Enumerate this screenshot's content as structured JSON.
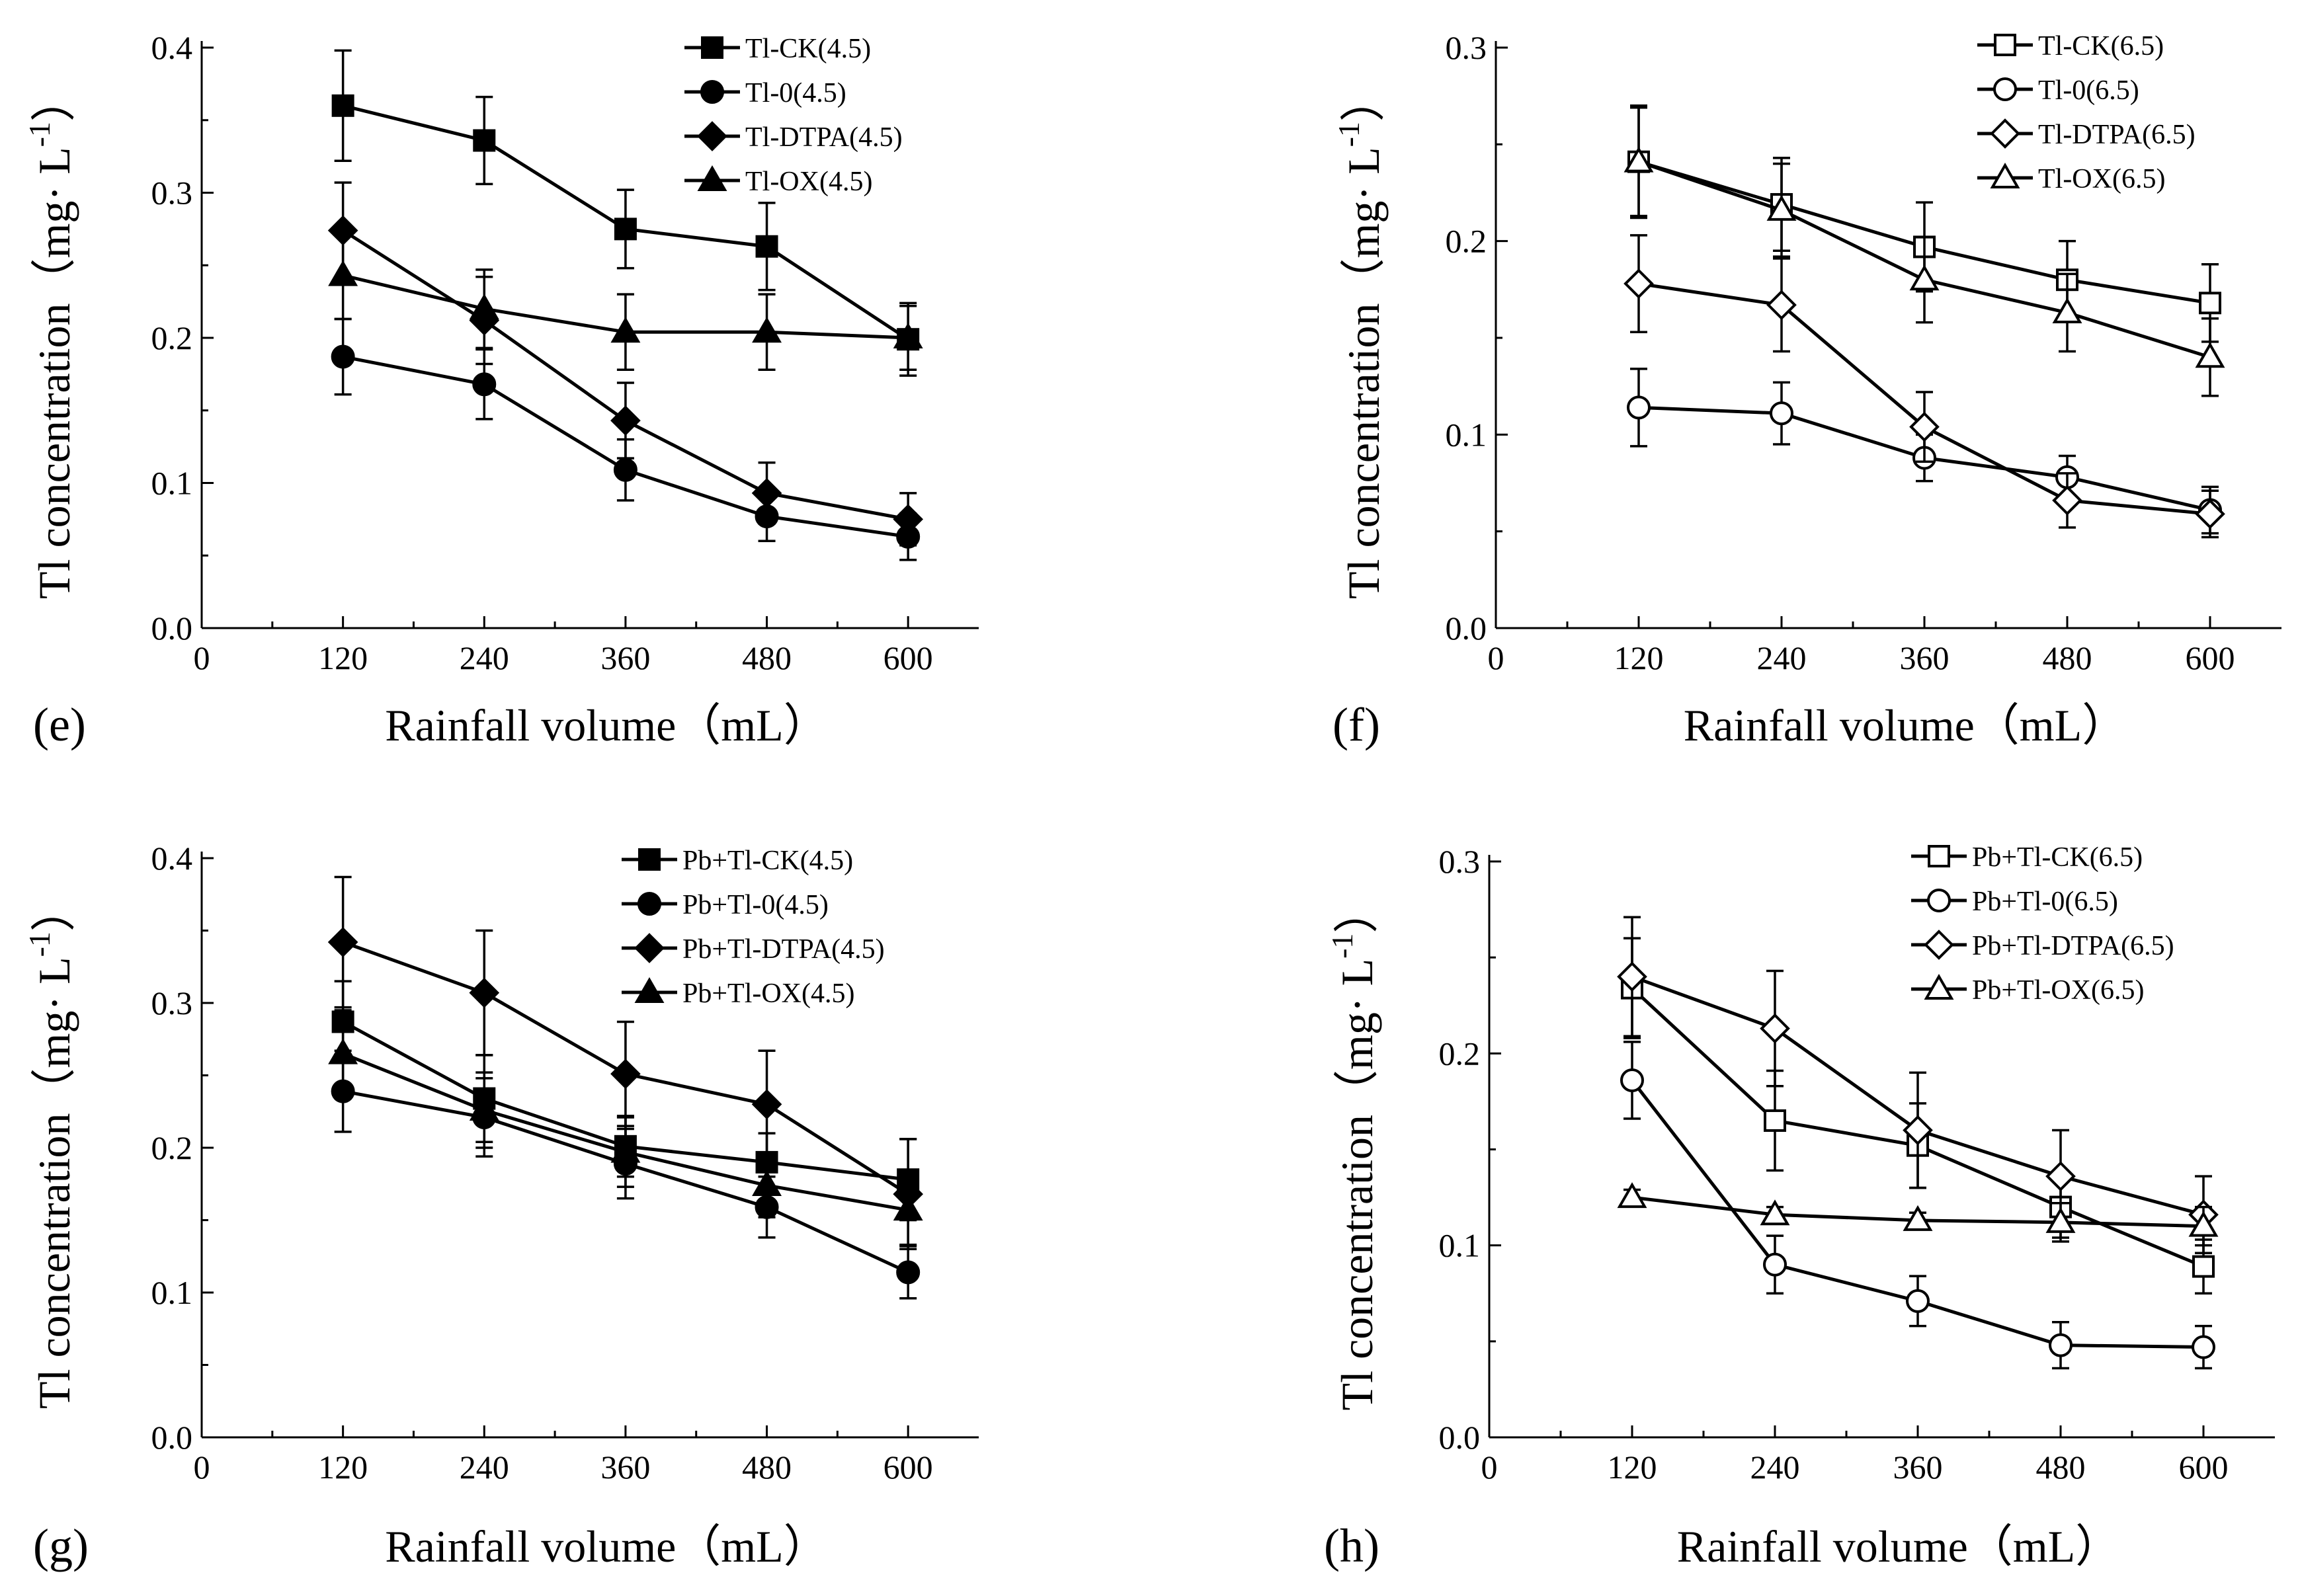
{
  "chart_data": [
    {
      "panel_label": "(e)",
      "type": "line",
      "xlabel": "Rainfall volume（mL）",
      "ylabel_main": "Tl concentration（mg· L",
      "ylabel_sup": "-1",
      "ylabel_close": "）",
      "xlim": [
        0,
        660
      ],
      "ylim": [
        0,
        0.4
      ],
      "xticks": [
        0,
        120,
        240,
        360,
        480,
        600
      ],
      "xtick_labels": [
        "0",
        "120",
        "240",
        "360",
        "480",
        "600"
      ],
      "yticks": [
        0,
        0.1,
        0.2,
        0.3,
        0.4
      ],
      "ytick_labels": [
        "0.0",
        "0.1",
        "0.2",
        "0.3",
        "0.4"
      ],
      "legend_position": "top-right",
      "x": [
        120,
        240,
        360,
        480,
        600
      ],
      "series": [
        {
          "name": "Tl-CK(4.5)",
          "marker": "square",
          "filled": true,
          "values": [
            0.36,
            0.336,
            0.275,
            0.263,
            0.199
          ],
          "errors": [
            0.038,
            0.03,
            0.027,
            0.03,
            0.025
          ]
        },
        {
          "name": "Tl-0(4.5)",
          "marker": "circle",
          "filled": true,
          "values": [
            0.187,
            0.168,
            0.109,
            0.077,
            0.063
          ],
          "errors": [
            0.026,
            0.024,
            0.021,
            0.017,
            0.016
          ]
        },
        {
          "name": "Tl-DTPA(4.5)",
          "marker": "diamond",
          "filled": true,
          "values": [
            0.274,
            0.212,
            0.143,
            0.093,
            0.075
          ],
          "errors": [
            0.033,
            0.03,
            0.026,
            0.021,
            0.018
          ]
        },
        {
          "name": "Tl-OX(4.5)",
          "marker": "triangle",
          "filled": true,
          "values": [
            0.243,
            0.22,
            0.204,
            0.204,
            0.2
          ],
          "errors": [
            0.03,
            0.027,
            0.026,
            0.026,
            0.022
          ]
        }
      ]
    },
    {
      "panel_label": "(f)",
      "type": "line",
      "xlabel": "Rainfall volume（mL）",
      "ylabel_main": "Tl concentration（mg· L",
      "ylabel_sup": "-1",
      "ylabel_close": "）",
      "xlim": [
        0,
        660
      ],
      "ylim": [
        0,
        0.3
      ],
      "xticks": [
        0,
        120,
        240,
        360,
        480,
        600
      ],
      "xtick_labels": [
        "0",
        "120",
        "240",
        "360",
        "480",
        "600"
      ],
      "yticks": [
        0,
        0.1,
        0.2,
        0.3
      ],
      "ytick_labels": [
        "0.0",
        "0.1",
        "0.2",
        "0.3"
      ],
      "legend_position": "top-right",
      "x": [
        120,
        240,
        360,
        480,
        600
      ],
      "series": [
        {
          "name": "Tl-CK(6.5)",
          "marker": "square",
          "filled": false,
          "values": [
            0.241,
            0.219,
            0.197,
            0.18,
            0.168
          ],
          "errors": [
            0.029,
            0.024,
            0.023,
            0.02,
            0.02
          ]
        },
        {
          "name": "Tl-0(6.5)",
          "marker": "circle",
          "filled": false,
          "values": [
            0.114,
            0.111,
            0.088,
            0.078,
            0.061
          ],
          "errors": [
            0.02,
            0.016,
            0.012,
            0.011,
            0.012
          ]
        },
        {
          "name": "Tl-DTPA(6.5)",
          "marker": "diamond",
          "filled": false,
          "values": [
            0.178,
            0.167,
            0.104,
            0.066,
            0.059
          ],
          "errors": [
            0.025,
            0.024,
            0.018,
            0.014,
            0.012
          ]
        },
        {
          "name": "Tl-OX(6.5)",
          "marker": "triangle",
          "filled": false,
          "values": [
            0.241,
            0.216,
            0.18,
            0.163,
            0.14
          ],
          "errors": [
            0.028,
            0.024,
            0.022,
            0.02,
            0.02
          ]
        }
      ]
    },
    {
      "panel_label": "(g)",
      "type": "line",
      "xlabel": "Rainfall volume（mL）",
      "ylabel_main": "Tl concentration（mg· L",
      "ylabel_sup": "-1",
      "ylabel_close": "）",
      "xlim": [
        0,
        660
      ],
      "ylim": [
        0,
        0.4
      ],
      "xticks": [
        0,
        120,
        240,
        360,
        480,
        600
      ],
      "xtick_labels": [
        "0",
        "120",
        "240",
        "360",
        "480",
        "600"
      ],
      "yticks": [
        0,
        0.1,
        0.2,
        0.3,
        0.4
      ],
      "ytick_labels": [
        "0.0",
        "0.1",
        "0.2",
        "0.3",
        "0.4"
      ],
      "legend_position": "top-right",
      "x": [
        120,
        240,
        360,
        480,
        600
      ],
      "series": [
        {
          "name": "Pb+Tl-CK(4.5)",
          "marker": "square",
          "filled": true,
          "values": [
            0.287,
            0.234,
            0.201,
            0.19,
            0.178
          ],
          "errors": [
            0.028,
            0.03,
            0.021,
            0.02,
            0.028
          ]
        },
        {
          "name": "Pb+Tl-0(4.5)",
          "marker": "circle",
          "filled": true,
          "values": [
            0.239,
            0.221,
            0.189,
            0.159,
            0.114
          ],
          "errors": [
            0.028,
            0.027,
            0.024,
            0.021,
            0.018
          ]
        },
        {
          "name": "Pb+Tl-DTPA(4.5)",
          "marker": "diamond",
          "filled": true,
          "values": [
            0.342,
            0.307,
            0.251,
            0.23,
            0.168
          ],
          "errors": [
            0.045,
            0.043,
            0.036,
            0.037,
            0.038
          ]
        },
        {
          "name": "Pb+Tl-OX(4.5)",
          "marker": "triangle",
          "filled": true,
          "values": [
            0.265,
            0.226,
            0.197,
            0.174,
            0.157
          ],
          "errors": [
            0.03,
            0.026,
            0.024,
            0.022,
            0.024
          ]
        }
      ]
    },
    {
      "panel_label": "(h)",
      "type": "line",
      "xlabel": "Rainfall volume（mL）",
      "ylabel_main": "Tl concentration（mg· L",
      "ylabel_sup": "-1",
      "ylabel_close": "）",
      "xlim": [
        0,
        660
      ],
      "ylim": [
        0,
        0.3
      ],
      "xticks": [
        0,
        120,
        240,
        360,
        480,
        600
      ],
      "xtick_labels": [
        "0",
        "120",
        "240",
        "360",
        "480",
        "600"
      ],
      "yticks": [
        0,
        0.1,
        0.2,
        0.3
      ],
      "ytick_labels": [
        "0.0",
        "0.1",
        "0.2",
        "0.3"
      ],
      "legend_position": "top-right",
      "x": [
        120,
        240,
        360,
        480,
        600
      ],
      "series": [
        {
          "name": "Pb+Tl-CK(6.5)",
          "marker": "square",
          "filled": false,
          "values": [
            0.234,
            0.165,
            0.152,
            0.12,
            0.089
          ],
          "errors": [
            0.026,
            0.026,
            0.022,
            0.016,
            0.014
          ]
        },
        {
          "name": "Pb+Tl-0(6.5)",
          "marker": "circle",
          "filled": false,
          "values": [
            0.186,
            0.09,
            0.071,
            0.048,
            0.047
          ],
          "errors": [
            0.02,
            0.015,
            0.013,
            0.012,
            0.011
          ]
        },
        {
          "name": "Pb+Tl-DTPA(6.5)",
          "marker": "diamond",
          "filled": false,
          "values": [
            0.24,
            0.213,
            0.16,
            0.136,
            0.116
          ],
          "errors": [
            0.031,
            0.03,
            0.03,
            0.024,
            0.02
          ]
        },
        {
          "name": "Pb+Tl-OX(6.5)",
          "marker": "triangle",
          "filled": false,
          "values": [
            0.125,
            0.116,
            0.113,
            0.112,
            0.11
          ],
          "errors": [
            0.004,
            0.004,
            0.004,
            0.01,
            0.01
          ]
        }
      ]
    }
  ]
}
